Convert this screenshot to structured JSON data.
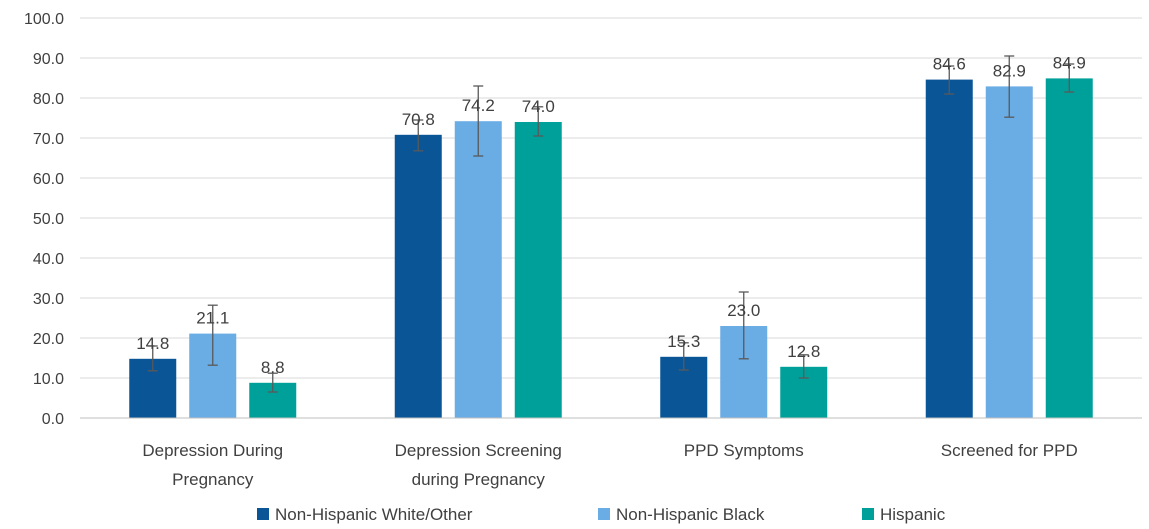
{
  "chart_data": {
    "type": "bar",
    "title": "",
    "xlabel": "",
    "ylabel": "",
    "ylim": [
      0,
      100
    ],
    "yticks": [
      "0.0",
      "10.0",
      "20.0",
      "30.0",
      "40.0",
      "50.0",
      "60.0",
      "70.0",
      "80.0",
      "90.0",
      "100.0"
    ],
    "grid": true,
    "legend_position": "bottom",
    "categories": [
      [
        "Depression During",
        "Pregnancy"
      ],
      [
        "Depression Screening",
        "during Pregnancy"
      ],
      [
        "PPD Symptoms"
      ],
      [
        "Screened for PPD"
      ]
    ],
    "series": [
      {
        "name": "Non-Hispanic White/Other",
        "color": "#0a5596",
        "values": [
          14.8,
          70.8,
          15.3,
          84.6
        ],
        "labels": [
          "14.8",
          "70.8",
          "15.3",
          "84.6"
        ],
        "error_low": [
          11.8,
          66.8,
          12.0,
          81.0
        ],
        "error_high": [
          18.0,
          74.5,
          18.8,
          88.0
        ]
      },
      {
        "name": "Non-Hispanic Black",
        "color": "#6aace4",
        "values": [
          21.1,
          74.2,
          23.0,
          82.9
        ],
        "labels": [
          "21.1",
          "74.2",
          "23.0",
          "82.9"
        ],
        "error_low": [
          13.2,
          65.5,
          14.8,
          75.2
        ],
        "error_high": [
          28.2,
          83.0,
          31.5,
          90.5
        ]
      },
      {
        "name": "Hispanic",
        "color": "#00a09a",
        "values": [
          8.8,
          74.0,
          12.8,
          84.9
        ],
        "labels": [
          "8.8",
          "74.0",
          "12.8",
          "84.9"
        ],
        "error_low": [
          6.5,
          70.5,
          10.0,
          81.5
        ],
        "error_high": [
          11.2,
          77.8,
          15.8,
          88.5
        ]
      }
    ]
  }
}
